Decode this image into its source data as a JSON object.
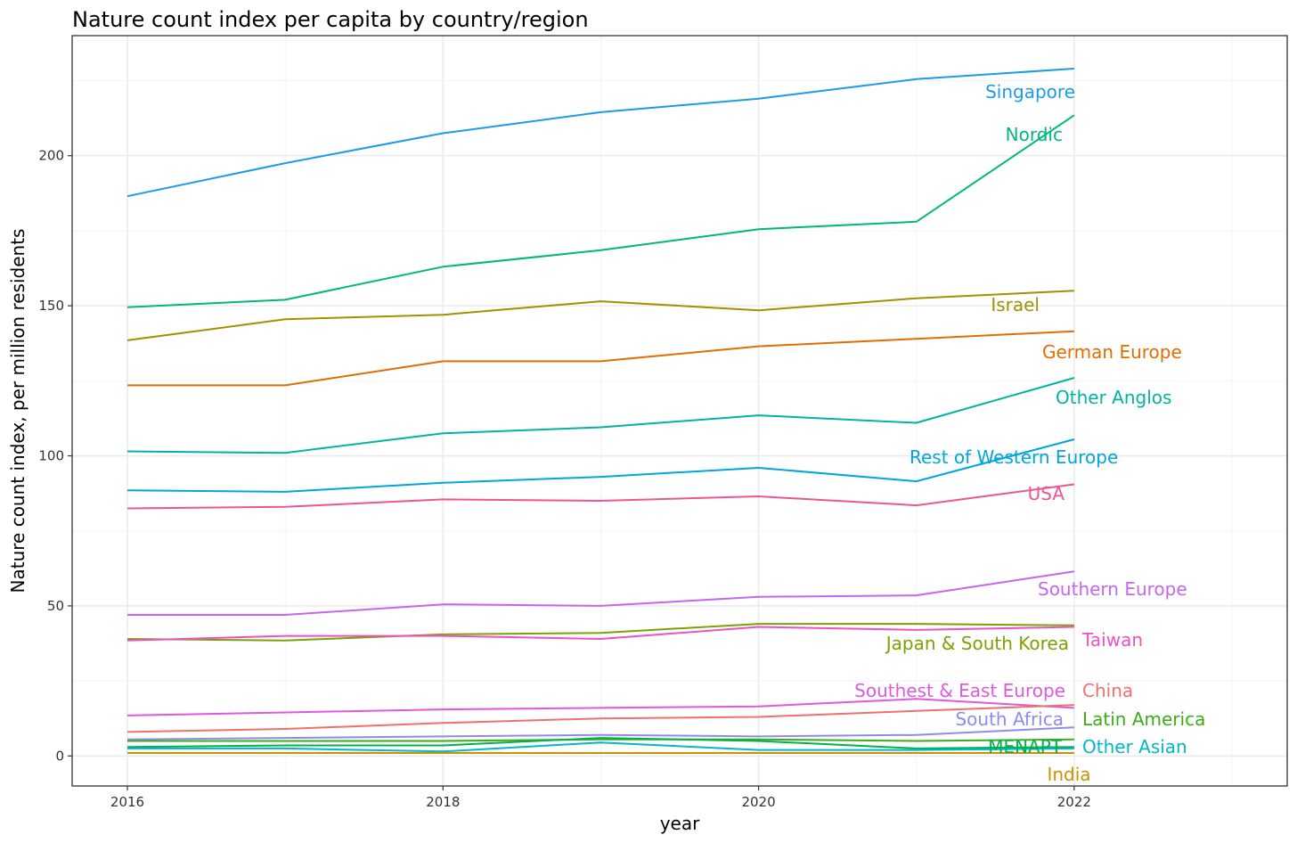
{
  "chart_data": {
    "type": "line",
    "title": "Nature count index per capita by country/region",
    "xlabel": "year",
    "ylabel": "Nature count index, per million residents",
    "x": [
      2016,
      2017,
      2018,
      2019,
      2020,
      2021,
      2022
    ],
    "xlim": [
      2015.65,
      2023.35
    ],
    "ylim": [
      -10,
      240
    ],
    "x_ticks": [
      2016,
      2018,
      2020,
      2022
    ],
    "x_tick_labels": [
      "2016",
      "2018",
      "2020",
      "2022"
    ],
    "y_ticks": [
      0,
      50,
      100,
      150,
      200
    ],
    "y_tick_labels": [
      "0",
      "50",
      "100",
      "150",
      "200"
    ],
    "grid": true,
    "legend": "direct labels at line ends",
    "series": [
      {
        "name": "Singapore",
        "color": "#1C9BE6",
        "values": [
          186.5,
          197.5,
          207.5,
          214.5,
          219,
          225.5,
          229
        ]
      },
      {
        "name": "Nordic",
        "color": "#00B77E",
        "values": [
          149.5,
          152,
          163,
          168.5,
          175.5,
          178,
          213.5
        ]
      },
      {
        "name": "Israel",
        "color": "#A39000",
        "values": [
          138.5,
          145.5,
          147,
          151.5,
          148.5,
          152.5,
          155
        ]
      },
      {
        "name": "German Europe",
        "color": "#E06E00",
        "values": [
          123.5,
          123.5,
          131.5,
          131.5,
          136.5,
          139,
          141.5
        ]
      },
      {
        "name": "Other Anglos",
        "color": "#00B3A4",
        "values": [
          101.5,
          101,
          107.5,
          109.5,
          113.5,
          111,
          126
        ]
      },
      {
        "name": "Rest of Western Europe",
        "color": "#00A7DA",
        "values": [
          88.5,
          88,
          91,
          93,
          96,
          91.5,
          105.5
        ]
      },
      {
        "name": "USA",
        "color": "#EE5591",
        "values": [
          82.5,
          83,
          85.5,
          85,
          86.5,
          83.5,
          90.5
        ]
      },
      {
        "name": "Southern Europe",
        "color": "#C566F0",
        "values": [
          47,
          47,
          50.5,
          50,
          53,
          53.5,
          61.5
        ]
      },
      {
        "name": "Japan & South Korea",
        "color": "#7AA300",
        "values": [
          39,
          38.5,
          40.5,
          41,
          44,
          44,
          43.5
        ]
      },
      {
        "name": "Taiwan",
        "color": "#F050C6",
        "values": [
          38.5,
          40,
          40,
          39,
          43,
          42,
          43
        ]
      },
      {
        "name": "Southest & East Europe",
        "color": "#E058DE",
        "values": [
          13.5,
          14.5,
          15.5,
          16,
          16.5,
          19,
          16
        ]
      },
      {
        "name": "China",
        "color": "#F0706A",
        "values": [
          8,
          9,
          11,
          12.5,
          13,
          15,
          17
        ]
      },
      {
        "name": "South Africa",
        "color": "#8C8CF0",
        "values": [
          5.5,
          6,
          6.5,
          7,
          6.5,
          7,
          9.5
        ]
      },
      {
        "name": "Latin America",
        "color": "#3BAE16",
        "values": [
          5,
          5,
          5,
          5.5,
          5.5,
          5,
          5.5
        ]
      },
      {
        "name": "MENAPT",
        "color": "#00B24A",
        "values": [
          3,
          3.5,
          3.5,
          6,
          5,
          2.5,
          3
        ]
      },
      {
        "name": "Other Asian",
        "color": "#00B8C8",
        "values": [
          2.5,
          2.5,
          1.5,
          4.5,
          2,
          2,
          2.5
        ]
      },
      {
        "name": "India",
        "color": "#D09000",
        "values": [
          1,
          1,
          1,
          1,
          1,
          1,
          1
        ]
      }
    ]
  }
}
